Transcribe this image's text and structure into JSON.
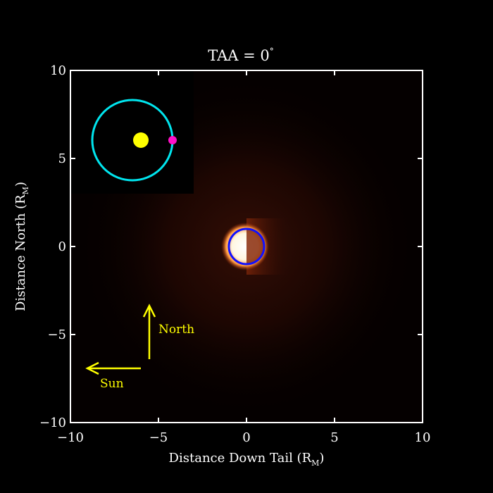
{
  "chart_data": {
    "type": "heatmap",
    "title_main": "TAA = 0",
    "title_degree": "°",
    "xlabel_main": "Distance Down Tail (R",
    "xlabel_sub": "M",
    "xlabel_end": ")",
    "ylabel_main": "Distance North (R",
    "ylabel_sub": "M",
    "ylabel_end": ")",
    "xlim": [
      -10,
      10
    ],
    "ylim": [
      -10,
      10
    ],
    "x_ticks": [
      {
        "value": -10,
        "label": "−10"
      },
      {
        "value": -5,
        "label": "−5"
      },
      {
        "value": 0,
        "label": "0"
      },
      {
        "value": 5,
        "label": "5"
      },
      {
        "value": 10,
        "label": "10"
      }
    ],
    "y_ticks": [
      {
        "value": 10,
        "label": "10"
      },
      {
        "value": 5,
        "label": "5"
      },
      {
        "value": 0,
        "label": "0"
      },
      {
        "value": -5,
        "label": "−5"
      },
      {
        "value": -10,
        "label": "−10"
      }
    ],
    "planet": {
      "center": [
        0,
        0
      ],
      "radius": 1,
      "color": "#1010ff"
    },
    "colors": {
      "frame": "#ffffff",
      "arrow": "#ffff00",
      "orbit": "#00e5ee",
      "sun": "#ffff00",
      "planet_marker": "#ff10c8",
      "emission_bright": "#ffffff",
      "emission_dim": "#5a1808"
    },
    "annotations": {
      "north": "North",
      "sun": "Sun"
    }
  }
}
